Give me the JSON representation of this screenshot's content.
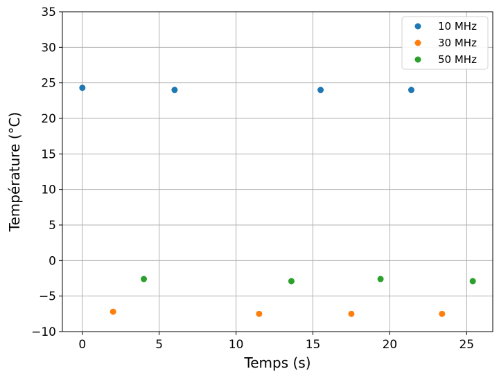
{
  "chart_data": {
    "type": "scatter",
    "xlabel": "Temps (s)",
    "ylabel": "Température (°C)",
    "xlim": [
      -1.3,
      26.7
    ],
    "ylim": [
      -10,
      35
    ],
    "xticks": [
      0,
      5,
      10,
      15,
      20,
      25
    ],
    "yticks": [
      -10,
      -5,
      0,
      5,
      10,
      15,
      20,
      25,
      30,
      35
    ],
    "xtick_labels": [
      "0",
      "5",
      "10",
      "15",
      "20",
      "25"
    ],
    "ytick_labels": [
      "−10",
      "−5",
      "0",
      "5",
      "10",
      "15",
      "20",
      "25",
      "30",
      "35"
    ],
    "grid": true,
    "legend_position": "top-right",
    "series": [
      {
        "name": "10 MHz",
        "color": "#1f77b4",
        "x": [
          0.0,
          6.0,
          15.5,
          21.4
        ],
        "y": [
          24.3,
          24.0,
          24.0,
          24.0
        ]
      },
      {
        "name": "30 MHz",
        "color": "#ff7f0e",
        "x": [
          2.0,
          11.5,
          17.5,
          23.4
        ],
        "y": [
          -7.2,
          -7.5,
          -7.5,
          -7.5
        ]
      },
      {
        "name": "50 MHz",
        "color": "#2ca02c",
        "x": [
          4.0,
          13.6,
          19.4,
          25.4
        ],
        "y": [
          -2.6,
          -2.9,
          -2.6,
          -2.9
        ]
      }
    ]
  }
}
